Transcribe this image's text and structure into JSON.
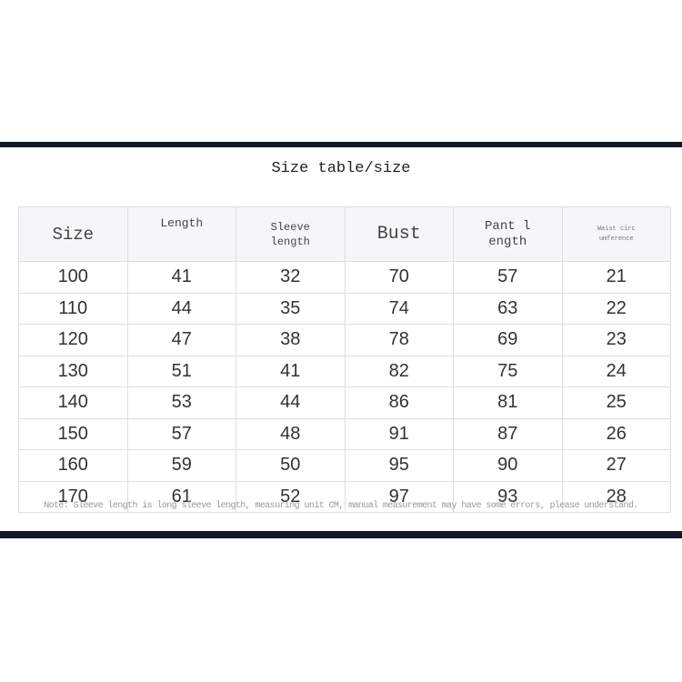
{
  "title": "Size table/size",
  "headers": [
    "Size",
    "Length",
    "Sleeve\nlength",
    "Bust",
    "Pant l\nength",
    "Waist circ\numference"
  ],
  "rows": [
    [
      "100",
      "41",
      "32",
      "70",
      "57",
      "21"
    ],
    [
      "110",
      "44",
      "35",
      "74",
      "63",
      "22"
    ],
    [
      "120",
      "47",
      "38",
      "78",
      "69",
      "23"
    ],
    [
      "130",
      "51",
      "41",
      "82",
      "75",
      "24"
    ],
    [
      "140",
      "53",
      "44",
      "86",
      "81",
      "25"
    ],
    [
      "150",
      "57",
      "48",
      "91",
      "87",
      "26"
    ],
    [
      "160",
      "59",
      "50",
      "95",
      "90",
      "27"
    ],
    [
      "170",
      "61",
      "52",
      "97",
      "93",
      "28"
    ]
  ],
  "note": "Note: Sleeve length is long sleeve length, measuring unit CM, manual measurement may have some errors, please understand."
}
